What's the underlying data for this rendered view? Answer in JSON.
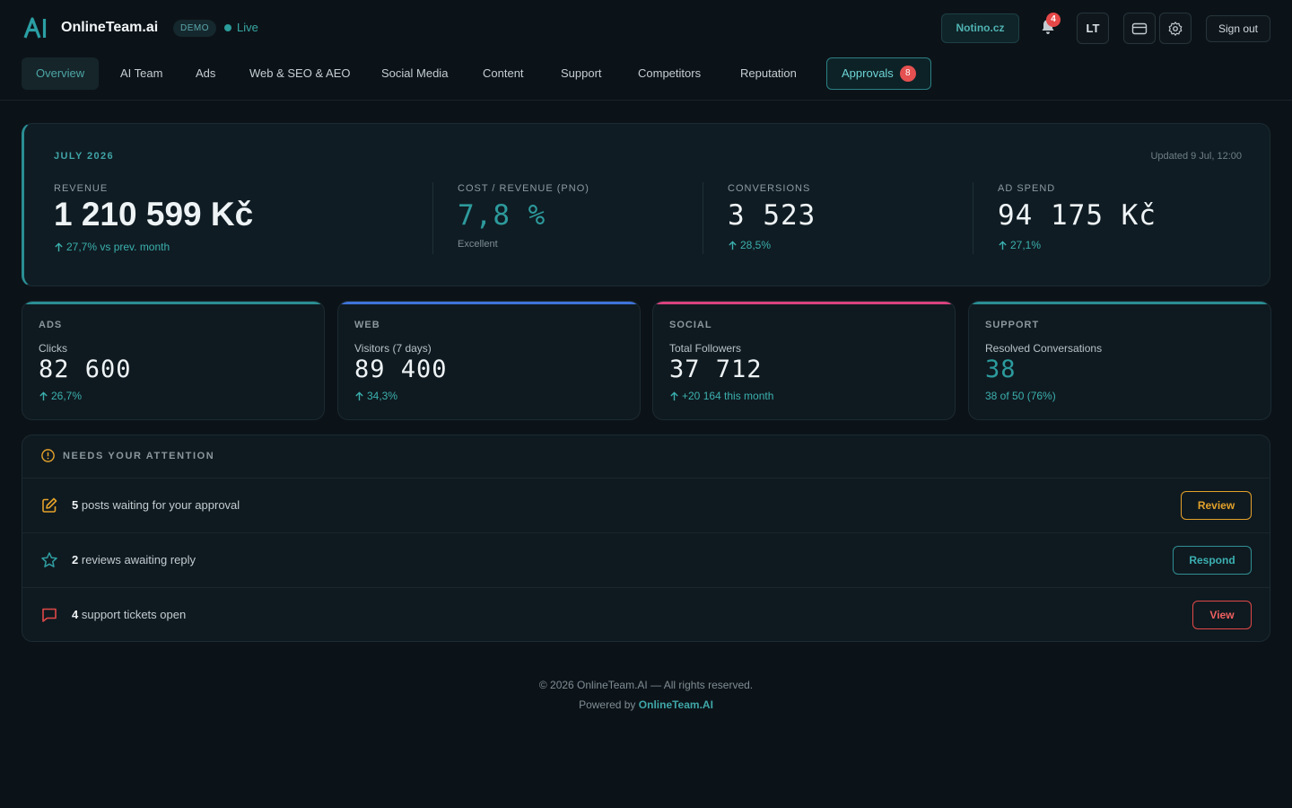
{
  "brand": {
    "name": "OnlineTeam.ai",
    "logo_text": "AI",
    "demo_label": "DEMO",
    "status_label": "Live"
  },
  "header": {
    "client": "Notino.cz",
    "notifications_count": "4",
    "language": "LT",
    "sign_out": "Sign out"
  },
  "nav": {
    "items": [
      {
        "label": "Overview",
        "active": true
      },
      {
        "label": "AI Team"
      },
      {
        "label": "Ads"
      },
      {
        "label": "Web & SEO & AEO"
      },
      {
        "label": "Social Media"
      },
      {
        "label": "Content"
      },
      {
        "label": "Support"
      },
      {
        "label": "Competitors"
      },
      {
        "label": "Reputation"
      },
      {
        "label": "Approvals",
        "count": "8"
      }
    ]
  },
  "hero": {
    "period": "JULY 2026",
    "updated": "Updated 9 Jul, 12:00",
    "kpis": [
      {
        "label": "REVENUE",
        "value": "1 210 599 Kč",
        "sub": "27,7% vs prev. month"
      },
      {
        "label": "COST / REVENUE (PNO)",
        "value": "7,8 %",
        "sub": "Excellent"
      },
      {
        "label": "CONVERSIONS",
        "value": "3 523",
        "sub": "28,5%"
      },
      {
        "label": "AD SPEND",
        "value": "94 175 Kč",
        "sub": "27,1%"
      }
    ]
  },
  "channels": [
    {
      "title": "ADS",
      "metric": "Clicks",
      "value": "82 600",
      "delta": "26,7%",
      "color": "#2a8e93"
    },
    {
      "title": "WEB",
      "metric": "Visitors (7 days)",
      "value": "89 400",
      "delta": "34,3%",
      "color": "#3f73d8"
    },
    {
      "title": "SOCIAL",
      "metric": "Total Followers",
      "value": "37 712",
      "delta": "+20 164 this month",
      "color": "#d8437d"
    },
    {
      "title": "SUPPORT",
      "metric": "Resolved Conversations",
      "value": "38",
      "delta": "38 of 50 (76%)",
      "color": "#2a8e93"
    }
  ],
  "attention": {
    "title": "NEEDS YOUR ATTENTION",
    "items": [
      {
        "count": "5",
        "text": "posts waiting for your approval",
        "action": "Review",
        "color": "#e3a12a"
      },
      {
        "count": "2",
        "text": "reviews awaiting reply",
        "action": "Respond",
        "color": "#2f9ea2"
      },
      {
        "count": "4",
        "text": "support tickets open",
        "action": "View",
        "color": "#e04848"
      }
    ]
  },
  "footer": {
    "copyright": "© 2026 OnlineTeam.AI — All rights reserved.",
    "powered_prefix": "Powered by",
    "powered_link": "OnlineTeam.AI"
  }
}
